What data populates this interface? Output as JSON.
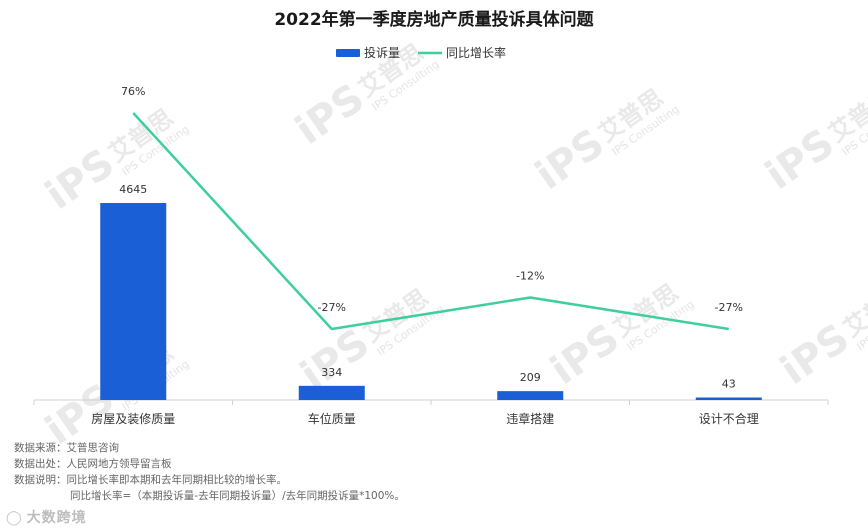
{
  "chart_data": {
    "type": "bar",
    "title": "2022年第一季度房地产质量投诉具体问题",
    "categories": [
      "房屋及装修质量",
      "车位质量",
      "违章搭建",
      "设计不合理"
    ],
    "series": [
      {
        "name": "投诉量",
        "kind": "bar",
        "color": "#1a5fd6",
        "values": [
          4645,
          334,
          209,
          43
        ],
        "labels": [
          "4645",
          "334",
          "209",
          "43"
        ]
      },
      {
        "name": "同比增长率",
        "kind": "line",
        "color": "#3ecf9c",
        "values": [
          76,
          -27,
          -12,
          -27
        ],
        "labels": [
          "76%",
          "-27%",
          "-12%",
          "-27%"
        ]
      }
    ],
    "legend_position": "top-center",
    "grid": false
  },
  "notes": {
    "source": "数据来源：艾普思咨询",
    "origin": "数据出处：人民网地方领导留言板",
    "explain": "数据说明：同比增长率即本期和去年同期相比较的增长率。",
    "formula": "同比增长率=（本期投诉量-去年同期投诉量）/去年同期投诉量*100%。"
  },
  "watermark": {
    "logo": "iPS",
    "brand": "艾普思",
    "sub": "IPS Consulting"
  },
  "footer_brand": {
    "icon": "logo-icon",
    "text": "大数跨境"
  }
}
